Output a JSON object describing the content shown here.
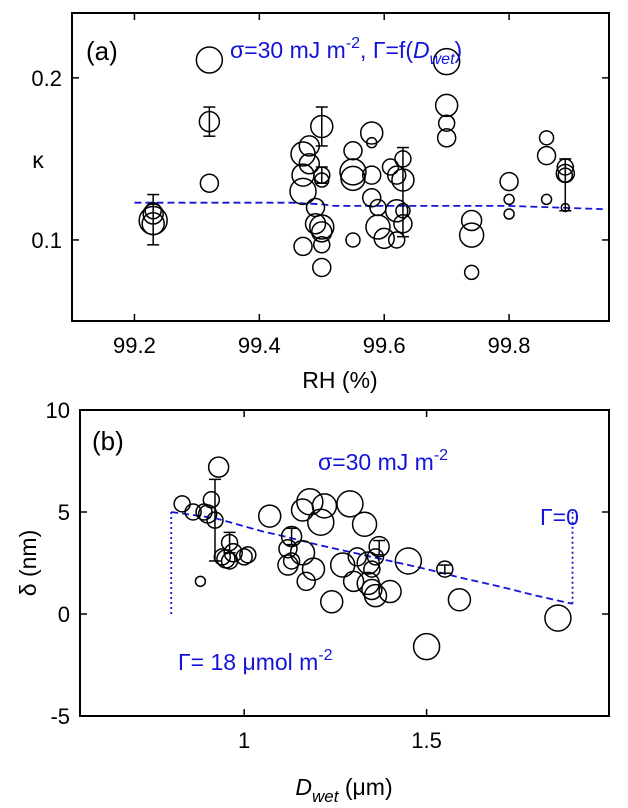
{
  "chart_data": [
    {
      "panel_label": "(a)",
      "type": "scatter",
      "annotation": {
        "prefix": "σ=30 mJ m",
        "sup": "-2",
        "mid": ", Γ=f(",
        "ital": "D",
        "sub": "wet",
        "suffix": ")"
      },
      "xlabel": "RH (%)",
      "ylabel": "κ",
      "xlim": [
        99.1,
        99.96
      ],
      "ylim": [
        0.05,
        0.24
      ],
      "xticks": [
        99.2,
        99.4,
        99.6,
        99.8
      ],
      "xtick_labels": [
        "99.2",
        "99.4",
        "99.6",
        "99.8"
      ],
      "yticks": [
        0.1,
        0.2
      ],
      "ytick_labels": [
        "0.1",
        "0.2"
      ],
      "points": [
        {
          "x": 99.23,
          "y": 0.112,
          "size": 14
        },
        {
          "x": 99.23,
          "y": 0.11,
          "size": 11
        },
        {
          "x": 99.23,
          "y": 0.116,
          "size": 10
        },
        {
          "x": 99.23,
          "y": 0.118,
          "size": 8
        },
        {
          "x": 99.32,
          "y": 0.211,
          "size": 13
        },
        {
          "x": 99.32,
          "y": 0.173,
          "size": 10
        },
        {
          "x": 99.32,
          "y": 0.135,
          "size": 9
        },
        {
          "x": 99.47,
          "y": 0.153,
          "size": 12
        },
        {
          "x": 99.47,
          "y": 0.14,
          "size": 11
        },
        {
          "x": 99.47,
          "y": 0.13,
          "size": 13
        },
        {
          "x": 99.47,
          "y": 0.096,
          "size": 9
        },
        {
          "x": 99.48,
          "y": 0.158,
          "size": 10
        },
        {
          "x": 99.48,
          "y": 0.147,
          "size": 10
        },
        {
          "x": 99.49,
          "y": 0.12,
          "size": 9
        },
        {
          "x": 99.49,
          "y": 0.11,
          "size": 10
        },
        {
          "x": 99.5,
          "y": 0.17,
          "size": 11
        },
        {
          "x": 99.5,
          "y": 0.14,
          "size": 8
        },
        {
          "x": 99.5,
          "y": 0.137,
          "size": 7
        },
        {
          "x": 99.5,
          "y": 0.108,
          "size": 12
        },
        {
          "x": 99.5,
          "y": 0.105,
          "size": 10
        },
        {
          "x": 99.5,
          "y": 0.097,
          "size": 8
        },
        {
          "x": 99.5,
          "y": 0.083,
          "size": 9
        },
        {
          "x": 99.55,
          "y": 0.155,
          "size": 9
        },
        {
          "x": 99.55,
          "y": 0.142,
          "size": 13
        },
        {
          "x": 99.55,
          "y": 0.138,
          "size": 12
        },
        {
          "x": 99.55,
          "y": 0.1,
          "size": 7
        },
        {
          "x": 99.58,
          "y": 0.166,
          "size": 11
        },
        {
          "x": 99.58,
          "y": 0.16,
          "size": 5
        },
        {
          "x": 99.58,
          "y": 0.14,
          "size": 9
        },
        {
          "x": 99.58,
          "y": 0.126,
          "size": 9
        },
        {
          "x": 99.59,
          "y": 0.12,
          "size": 8
        },
        {
          "x": 99.59,
          "y": 0.108,
          "size": 12
        },
        {
          "x": 99.6,
          "y": 0.101,
          "size": 10
        },
        {
          "x": 99.61,
          "y": 0.145,
          "size": 8
        },
        {
          "x": 99.62,
          "y": 0.14,
          "size": 9
        },
        {
          "x": 99.62,
          "y": 0.118,
          "size": 11
        },
        {
          "x": 99.62,
          "y": 0.1,
          "size": 8
        },
        {
          "x": 99.63,
          "y": 0.15,
          "size": 8
        },
        {
          "x": 99.63,
          "y": 0.137,
          "size": 11
        },
        {
          "x": 99.63,
          "y": 0.118,
          "size": 7
        },
        {
          "x": 99.63,
          "y": 0.11,
          "size": 9
        },
        {
          "x": 99.7,
          "y": 0.21,
          "size": 13
        },
        {
          "x": 99.7,
          "y": 0.183,
          "size": 11
        },
        {
          "x": 99.7,
          "y": 0.172,
          "size": 8
        },
        {
          "x": 99.7,
          "y": 0.163,
          "size": 9
        },
        {
          "x": 99.74,
          "y": 0.112,
          "size": 10
        },
        {
          "x": 99.74,
          "y": 0.103,
          "size": 12
        },
        {
          "x": 99.74,
          "y": 0.08,
          "size": 7
        },
        {
          "x": 99.8,
          "y": 0.136,
          "size": 9
        },
        {
          "x": 99.8,
          "y": 0.125,
          "size": 5
        },
        {
          "x": 99.8,
          "y": 0.116,
          "size": 5
        },
        {
          "x": 99.86,
          "y": 0.163,
          "size": 7
        },
        {
          "x": 99.86,
          "y": 0.152,
          "size": 9
        },
        {
          "x": 99.86,
          "y": 0.125,
          "size": 5
        },
        {
          "x": 99.89,
          "y": 0.145,
          "size": 8
        },
        {
          "x": 99.89,
          "y": 0.141,
          "size": 9
        },
        {
          "x": 99.89,
          "y": 0.14,
          "size": 7
        },
        {
          "x": 99.89,
          "y": 0.12,
          "size": 4
        }
      ],
      "error_bars": [
        {
          "x": 99.23,
          "y": 0.112,
          "low": 0.097,
          "high": 0.128
        },
        {
          "x": 99.32,
          "y": 0.173,
          "low": 0.164,
          "high": 0.182
        },
        {
          "x": 99.5,
          "y": 0.17,
          "low": 0.158,
          "high": 0.182
        },
        {
          "x": 99.5,
          "y": 0.14,
          "low": 0.135,
          "high": 0.145
        },
        {
          "x": 99.63,
          "y": 0.137,
          "low": 0.102,
          "high": 0.157
        },
        {
          "x": 99.89,
          "y": 0.141,
          "low": 0.118,
          "high": 0.15
        }
      ],
      "fit_line": {
        "x": [
          99.2,
          99.35,
          99.45,
          99.5,
          99.52,
          99.6,
          99.8,
          99.95
        ],
        "y": [
          0.123,
          0.123,
          0.123,
          0.122,
          0.121,
          0.121,
          0.121,
          0.119
        ]
      }
    },
    {
      "panel_label": "(b)",
      "type": "scatter",
      "annotation": {
        "prefix": "σ=30 mJ m",
        "sup": "-2"
      },
      "annotation_gamma0": "Γ=0",
      "annotation_gamma18": {
        "prefix": "Γ= 18 μmol m",
        "sup": "-2"
      },
      "xlabel": {
        "ital": "D",
        "sub": "wet",
        "suffix": " (μm)"
      },
      "ylabel": "δ (nm)",
      "xlim": [
        0.55,
        2.0
      ],
      "ylim": [
        -5,
        10
      ],
      "xticks": [
        1,
        1.5
      ],
      "xtick_labels": [
        "1",
        "1.5"
      ],
      "yticks": [
        -5,
        0,
        5,
        10
      ],
      "ytick_labels": [
        "-5",
        "0",
        "5",
        "10"
      ],
      "points": [
        {
          "x": 0.83,
          "y": 5.4,
          "size": 8
        },
        {
          "x": 0.86,
          "y": 5.0,
          "size": 8
        },
        {
          "x": 0.88,
          "y": 1.6,
          "size": 5
        },
        {
          "x": 0.89,
          "y": 5.0,
          "size": 8
        },
        {
          "x": 0.9,
          "y": 4.9,
          "size": 9
        },
        {
          "x": 0.91,
          "y": 5.6,
          "size": 8
        },
        {
          "x": 0.92,
          "y": 4.6,
          "size": 8
        },
        {
          "x": 0.93,
          "y": 7.2,
          "size": 10
        },
        {
          "x": 0.94,
          "y": 2.8,
          "size": 8
        },
        {
          "x": 0.95,
          "y": 2.7,
          "size": 9
        },
        {
          "x": 0.96,
          "y": 2.6,
          "size": 8
        },
        {
          "x": 0.96,
          "y": 3.5,
          "size": 8
        },
        {
          "x": 0.97,
          "y": 3.0,
          "size": 9
        },
        {
          "x": 1.0,
          "y": 2.8,
          "size": 8
        },
        {
          "x": 1.01,
          "y": 2.9,
          "size": 8
        },
        {
          "x": 1.07,
          "y": 4.8,
          "size": 11
        },
        {
          "x": 1.12,
          "y": 3.2,
          "size": 9
        },
        {
          "x": 1.12,
          "y": 2.4,
          "size": 10
        },
        {
          "x": 1.13,
          "y": 3.8,
          "size": 10
        },
        {
          "x": 1.13,
          "y": 2.6,
          "size": 8
        },
        {
          "x": 1.16,
          "y": 5.1,
          "size": 11
        },
        {
          "x": 1.16,
          "y": 3.0,
          "size": 12
        },
        {
          "x": 1.17,
          "y": 1.6,
          "size": 9
        },
        {
          "x": 1.18,
          "y": 5.5,
          "size": 13
        },
        {
          "x": 1.19,
          "y": 2.2,
          "size": 11
        },
        {
          "x": 1.21,
          "y": 4.5,
          "size": 13
        },
        {
          "x": 1.22,
          "y": 5.3,
          "size": 12
        },
        {
          "x": 1.24,
          "y": 0.6,
          "size": 11
        },
        {
          "x": 1.27,
          "y": 2.4,
          "size": 12
        },
        {
          "x": 1.29,
          "y": 5.4,
          "size": 13
        },
        {
          "x": 1.3,
          "y": 1.6,
          "size": 10
        },
        {
          "x": 1.31,
          "y": 2.8,
          "size": 9
        },
        {
          "x": 1.33,
          "y": 4.4,
          "size": 12
        },
        {
          "x": 1.34,
          "y": 2.5,
          "size": 11
        },
        {
          "x": 1.34,
          "y": 1.5,
          "size": 11
        },
        {
          "x": 1.35,
          "y": 2.2,
          "size": 8
        },
        {
          "x": 1.35,
          "y": 1.2,
          "size": 10
        },
        {
          "x": 1.36,
          "y": 0.9,
          "size": 11
        },
        {
          "x": 1.36,
          "y": 2.8,
          "size": 8
        },
        {
          "x": 1.37,
          "y": 3.3,
          "size": 10
        },
        {
          "x": 1.4,
          "y": 1.1,
          "size": 11
        },
        {
          "x": 1.45,
          "y": 2.6,
          "size": 13
        },
        {
          "x": 1.5,
          "y": -1.6,
          "size": 13
        },
        {
          "x": 1.55,
          "y": 2.2,
          "size": 8
        },
        {
          "x": 1.59,
          "y": 0.7,
          "size": 11
        },
        {
          "x": 1.86,
          "y": -0.2,
          "size": 13
        }
      ],
      "error_bars": [
        {
          "x": 0.92,
          "y": 4.6,
          "low": 2.6,
          "high": 6.6
        },
        {
          "x": 0.96,
          "y": 3.5,
          "low": 3.0,
          "high": 4.0
        },
        {
          "x": 1.13,
          "y": 3.8,
          "low": 3.4,
          "high": 4.2
        },
        {
          "x": 1.37,
          "y": 3.3,
          "low": 2.9,
          "high": 3.6
        },
        {
          "x": 1.55,
          "y": 2.2,
          "low": 2.0,
          "high": 2.4
        }
      ],
      "fit_line": {
        "x": [
          0.8,
          0.92,
          1.0,
          1.05,
          1.1,
          1.2,
          1.3,
          1.4,
          1.5,
          1.6,
          1.7,
          1.8,
          1.9
        ],
        "y": [
          5.0,
          4.7,
          4.3,
          4.05,
          3.85,
          3.4,
          3.0,
          2.6,
          2.2,
          1.75,
          1.35,
          0.9,
          0.5
        ]
      },
      "gamma18_edge": {
        "x": [
          0.8,
          0.8
        ],
        "y": [
          0.0,
          5.0
        ]
      },
      "gamma0_edge": {
        "x": [
          1.9,
          1.9
        ],
        "y": [
          0.5,
          5.0
        ]
      }
    }
  ]
}
